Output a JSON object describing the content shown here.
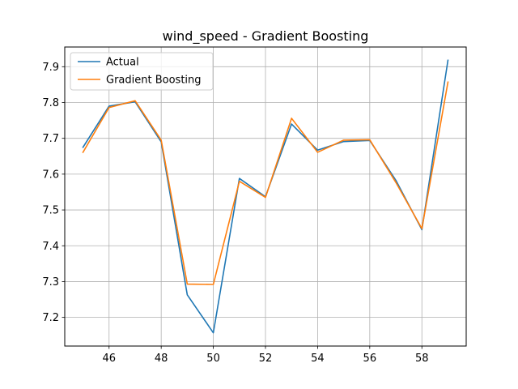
{
  "chart_data": {
    "type": "line",
    "title": "wind_speed - Gradient Boosting",
    "xlabel": "",
    "ylabel": "",
    "xlim": [
      44.3,
      59.7
    ],
    "ylim": [
      7.12,
      7.955
    ],
    "x_ticks": [
      46,
      48,
      50,
      52,
      54,
      56,
      58
    ],
    "y_ticks": [
      7.2,
      7.3,
      7.4,
      7.5,
      7.6,
      7.7,
      7.8,
      7.9
    ],
    "grid": true,
    "legend_position": "upper-left",
    "x": [
      45,
      46,
      47,
      48,
      49,
      50,
      51,
      52,
      53,
      54,
      55,
      56,
      57,
      58,
      59
    ],
    "series": [
      {
        "name": "Actual",
        "color": "#1f77b4",
        "values": [
          7.675,
          7.79,
          7.802,
          7.69,
          7.263,
          7.157,
          7.588,
          7.537,
          7.74,
          7.667,
          7.691,
          7.694,
          7.583,
          7.445,
          7.918
        ]
      },
      {
        "name": "Gradient Boosting",
        "color": "#ff7f0e",
        "values": [
          7.661,
          7.786,
          7.805,
          7.695,
          7.293,
          7.292,
          7.58,
          7.535,
          7.756,
          7.661,
          7.695,
          7.696,
          7.577,
          7.448,
          7.857
        ]
      }
    ]
  }
}
